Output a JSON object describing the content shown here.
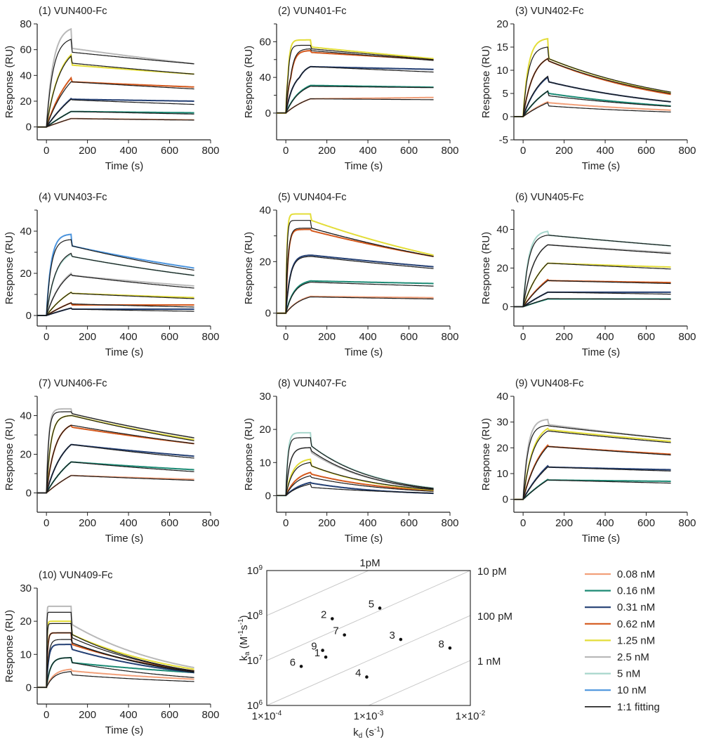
{
  "legend": {
    "items": [
      {
        "label": "0.08 nM",
        "color": "#f2a07a"
      },
      {
        "label": "0.16 nM",
        "color": "#1b8a74"
      },
      {
        "label": "0.31 nM",
        "color": "#233f73"
      },
      {
        "label": "0.62 nM",
        "color": "#d4581c"
      },
      {
        "label": "1.25 nM",
        "color": "#e3dd38"
      },
      {
        "label": "2.5 nM",
        "color": "#b9b9b9"
      },
      {
        "label": "5 nM",
        "color": "#a7d6cc"
      },
      {
        "label": "10 nM",
        "color": "#4b94dd"
      },
      {
        "label": "1:1 fitting",
        "color": "#1a1a1a"
      }
    ]
  },
  "chart_data": [
    {
      "type": "line",
      "title": "(1) VUN400-Fc",
      "xlabel": "Time (s)",
      "ylabel": "Response (RU)",
      "xlim": [
        -45,
        800
      ],
      "xticks": [
        0,
        200,
        400,
        600,
        800
      ],
      "ylim": [
        -10,
        80
      ],
      "yticks": [
        0,
        20,
        40,
        60,
        80
      ],
      "yminor": [],
      "series": [
        {
          "name": "0.08 nM",
          "r120": 6.5,
          "r125": 6.5,
          "r720": 5.5,
          "fit": {
            "r120": 6.5,
            "r125": 6.5,
            "r720": 5.3
          }
        },
        {
          "name": "0.16 nM",
          "r120": 12,
          "r125": 12,
          "r720": 11,
          "fit": {
            "r120": 12,
            "r125": 12,
            "r720": 10
          }
        },
        {
          "name": "0.31 nM",
          "r120": 22,
          "r125": 21.5,
          "r720": 20,
          "fit": {
            "r120": 21.5,
            "r125": 21,
            "r720": 17.5
          }
        },
        {
          "name": "0.62 nM",
          "r120": 38,
          "r125": 35,
          "r720": 31,
          "fit": {
            "r120": 35,
            "r125": 35,
            "r720": 29.5
          }
        },
        {
          "name": "1.25 nM",
          "r120": 56,
          "r125": 48,
          "r720": 41,
          "fit": {
            "r120": 55,
            "r125": 49.5,
            "r720": 41
          }
        },
        {
          "name": "2.5 nM",
          "r120": 76,
          "r125": 61,
          "r720": 49,
          "fit": {
            "r120": 68,
            "r125": 58,
            "r720": 49
          }
        }
      ]
    },
    {
      "type": "line",
      "title": "(2) VUN401-Fc",
      "xlabel": "Time (s)",
      "ylabel": "Response (RU)",
      "xlim": [
        -45,
        800
      ],
      "xticks": [
        0,
        200,
        400,
        600,
        800
      ],
      "ylim": [
        -30,
        70
      ],
      "yticks": [
        0,
        40,
        60
      ],
      "yminor": [
        20,
        50,
        70
      ],
      "series": [
        {
          "name": "0.08 nM",
          "r120": 16,
          "r125": 16,
          "r720": 17.5,
          "fit": {
            "r120": 16,
            "r125": 16,
            "r720": 15
          }
        },
        {
          "name": "0.16 nM",
          "r120": 31,
          "r125": 31,
          "r720": 29,
          "fit": {
            "r120": 30,
            "r125": 30,
            "r720": 28.5
          }
        },
        {
          "name": "0.31 nM",
          "r120": 46,
          "r125": 46,
          "r720": 44.5,
          "fit": {
            "r120": 46,
            "r125": 46,
            "r720": 43
          }
        },
        {
          "name": "0.62 nM",
          "r120": 55,
          "r125": 54,
          "r720": 50,
          "fit": {
            "r120": 56,
            "r125": 55,
            "r720": 49.5
          }
        },
        {
          "name": "1.25 nM",
          "r120": 61,
          "r125": 57,
          "r720": 50.5,
          "fit": {
            "r120": 58,
            "r125": 56,
            "r720": 50
          }
        }
      ]
    },
    {
      "type": "line",
      "title": "(3) VUN402-Fc",
      "xlabel": "Time (s)",
      "ylabel": "Response (RU)",
      "xlim": [
        -45,
        800
      ],
      "xticks": [
        0,
        200,
        400,
        600,
        800
      ],
      "ylim": [
        -5,
        20
      ],
      "yticks": [
        -5,
        0,
        5,
        10,
        15,
        20
      ],
      "yminor": [],
      "series": [
        {
          "name": "0.08 nM",
          "r120": 3.2,
          "r125": 3,
          "r720": 1.4,
          "fit": {
            "r120": 3,
            "r125": 2.3,
            "r720": 1
          }
        },
        {
          "name": "0.16 nM",
          "r120": 5.5,
          "r125": 5,
          "r720": 2.3,
          "fit": {
            "r120": 5.5,
            "r125": 4.5,
            "r720": 2.2
          }
        },
        {
          "name": "0.31 nM",
          "r120": 8.5,
          "r125": 7.5,
          "r720": 3.2,
          "fit": {
            "r120": 8.7,
            "r125": 7.5,
            "r720": 3.2
          }
        },
        {
          "name": "0.62 nM",
          "r120": 12.5,
          "r125": 12,
          "r720": 4.8,
          "fit": {
            "r120": 12.5,
            "r125": 12,
            "r720": 5
          }
        },
        {
          "name": "1.25 nM",
          "r120": 16.8,
          "r125": 12.5,
          "r720": 5.2,
          "fit": {
            "r120": 15,
            "r125": 12.5,
            "r720": 5.3
          }
        }
      ]
    },
    {
      "type": "line",
      "title": "(4) VUN403-Fc",
      "xlabel": "Time (s)",
      "ylabel": "Response (RU)",
      "xlim": [
        -45,
        800
      ],
      "xticks": [
        0,
        200,
        400,
        600,
        800
      ],
      "ylim": [
        -5,
        50
      ],
      "yticks": [
        0,
        20,
        40
      ],
      "yminor": [
        10,
        30,
        50
      ],
      "series": [
        {
          "name": "0.31 nM",
          "r120": 3.5,
          "r125": 3,
          "r720": 3,
          "fit": {
            "r120": 3.5,
            "r125": 3,
            "r720": 2
          }
        },
        {
          "name": "0.62 nM",
          "r120": 6,
          "r125": 5,
          "r720": 5,
          "fit": {
            "r120": 6,
            "r125": 5.5,
            "r720": 4
          }
        },
        {
          "name": "1.25 nM",
          "r120": 11,
          "r125": 10.5,
          "r720": 8.5,
          "fit": {
            "r120": 11,
            "r125": 10.5,
            "r720": 8
          }
        },
        {
          "name": "2.5 nM",
          "r120": 20,
          "r125": 19,
          "r720": 14,
          "fit": {
            "r120": 19.5,
            "r125": 19,
            "r720": 13
          }
        },
        {
          "name": "5 nM",
          "r120": 29,
          "r125": 28,
          "r720": 19,
          "fit": {
            "r120": 29.5,
            "r125": 28,
            "r720": 19
          }
        },
        {
          "name": "10 nM",
          "r120": 38.5,
          "r125": 33,
          "r720": 22.5,
          "fit": {
            "r120": 36,
            "r125": 33,
            "r720": 21.5
          }
        }
      ]
    },
    {
      "type": "line",
      "title": "(5) VUN404-Fc",
      "xlabel": "Time (s)",
      "ylabel": "Response (RU)",
      "xlim": [
        -45,
        800
      ],
      "xticks": [
        0,
        200,
        400,
        600,
        800
      ],
      "ylim": [
        -5,
        40
      ],
      "yticks": [
        0,
        20,
        40
      ],
      "yminor": [
        10,
        30
      ],
      "series": [
        {
          "name": "0.08 nM",
          "r120": 6.5,
          "r125": 6.5,
          "r720": 6,
          "fit": {
            "r120": 6.3,
            "r125": 6.3,
            "r720": 5.5
          }
        },
        {
          "name": "0.16 nM",
          "r120": 12.5,
          "r125": 12.5,
          "r720": 11.5,
          "fit": {
            "r120": 12,
            "r125": 12,
            "r720": 10.5
          }
        },
        {
          "name": "0.31 nM",
          "r120": 22.5,
          "r125": 22.5,
          "r720": 18,
          "fit": {
            "r120": 22,
            "r125": 22,
            "r720": 17.3
          }
        },
        {
          "name": "0.62 nM",
          "r120": 32.5,
          "r125": 32,
          "r720": 22,
          "fit": {
            "r120": 33,
            "r125": 33,
            "r720": 22
          }
        },
        {
          "name": "1.25 nM",
          "r120": 38.5,
          "r125": 36,
          "r720": 22.5,
          "fit": {
            "r120": 36,
            "r125": 33,
            "r720": 22
          }
        }
      ]
    },
    {
      "type": "line",
      "title": "(6) VUN405-Fc",
      "xlabel": "Time (s)",
      "ylabel": "Response (RU)",
      "xlim": [
        -45,
        800
      ],
      "xticks": [
        0,
        200,
        400,
        600,
        800
      ],
      "ylim": [
        -10,
        50
      ],
      "yticks": [
        0,
        20,
        40
      ],
      "yminor": [
        10,
        30,
        50
      ],
      "series": [
        {
          "name": "0.16 nM",
          "r120": 4,
          "r125": 4,
          "r720": 4,
          "fit": {
            "r120": 4.2,
            "r125": 4.2,
            "r720": 3.8
          }
        },
        {
          "name": "0.31 nM",
          "r120": 7.5,
          "r125": 7.5,
          "r720": 7.5,
          "fit": {
            "r120": 7.5,
            "r125": 7.5,
            "r720": 6.5
          }
        },
        {
          "name": "0.62 nM",
          "r120": 14,
          "r125": 13.5,
          "r720": 12.5,
          "fit": {
            "r120": 13.5,
            "r125": 13.5,
            "r720": 12
          }
        },
        {
          "name": "1.25 nM",
          "r120": 22.5,
          "r125": 22.5,
          "r720": 20.5,
          "fit": {
            "r120": 22.5,
            "r125": 22.5,
            "r720": 19.5
          }
        },
        {
          "name": "2.5 nM",
          "r120": 32,
          "r125": 32,
          "r720": 28,
          "fit": {
            "r120": 32,
            "r125": 32,
            "r720": 27.5
          }
        },
        {
          "name": "5 nM",
          "r120": 39,
          "r125": 37,
          "r720": 31.5,
          "fit": {
            "r120": 37,
            "r125": 37,
            "r720": 31.5
          }
        }
      ]
    },
    {
      "type": "line",
      "title": "(7) VUN406-Fc",
      "xlabel": "Time (s)",
      "ylabel": "Response (RU)",
      "xlim": [
        -45,
        800
      ],
      "xticks": [
        0,
        200,
        400,
        600,
        800
      ],
      "ylim": [
        -10,
        50
      ],
      "yticks": [
        0,
        20,
        40
      ],
      "yminor": [
        10,
        30,
        50
      ],
      "series": [
        {
          "name": "0.08 nM",
          "r120": 9,
          "r125": 9,
          "r720": 7,
          "fit": {
            "r120": 9,
            "r125": 9,
            "r720": 6.5
          }
        },
        {
          "name": "0.16 nM",
          "r120": 16,
          "r125": 16,
          "r720": 12,
          "fit": {
            "r120": 16,
            "r125": 16,
            "r720": 11
          }
        },
        {
          "name": "0.31 nM",
          "r120": 25,
          "r125": 25,
          "r720": 19,
          "fit": {
            "r120": 25,
            "r125": 25,
            "r720": 18
          }
        },
        {
          "name": "0.62 nM",
          "r120": 35,
          "r125": 34,
          "r720": 25.5,
          "fit": {
            "r120": 35,
            "r125": 35,
            "r720": 25.5
          }
        },
        {
          "name": "1.25 nM",
          "r120": 40,
          "r125": 40,
          "r720": 27.5,
          "fit": {
            "r120": 40,
            "r125": 40,
            "r720": 27
          }
        },
        {
          "name": "2.5 nM",
          "r120": 43.5,
          "r125": 41,
          "r720": 28.5,
          "fit": {
            "r120": 42,
            "r125": 41,
            "r720": 28.5
          }
        }
      ]
    },
    {
      "type": "line",
      "title": "(8) VUN407-Fc",
      "xlabel": "Time (s)",
      "ylabel": "Response (RU)",
      "xlim": [
        -45,
        800
      ],
      "xticks": [
        0,
        200,
        400,
        600,
        800
      ],
      "ylim": [
        -5,
        30
      ],
      "yticks": [
        0,
        10,
        20,
        30
      ],
      "yminor": [],
      "series": [
        {
          "name": "0.31 nM",
          "r120": 4,
          "r125": 3.8,
          "r720": 0.7,
          "fit": {
            "r120": 3.5,
            "r125": 2.5,
            "r720": 0.8
          }
        },
        {
          "name": "0.62 nM",
          "r120": 7,
          "r125": 6.5,
          "r720": 1.5,
          "fit": {
            "r120": 6,
            "r125": 5.5,
            "r720": 1.3
          }
        },
        {
          "name": "1.25 nM",
          "r120": 11,
          "r125": 9,
          "r720": 1.7,
          "fit": {
            "r120": 10,
            "r125": 9,
            "r720": 1.8
          }
        },
        {
          "name": "2.5 nM",
          "r120": 14.5,
          "r125": 13,
          "r720": 2,
          "fit": {
            "r120": 14.5,
            "r125": 13.5,
            "r720": 2
          }
        },
        {
          "name": "5 nM",
          "r120": 19,
          "r125": 15,
          "r720": 2.3,
          "fit": {
            "r120": 17.5,
            "r125": 15,
            "r720": 2.2
          }
        }
      ]
    },
    {
      "type": "line",
      "title": "(9) VUN408-Fc",
      "xlabel": "Time (s)",
      "ylabel": "Response (RU)",
      "xlim": [
        -45,
        800
      ],
      "xticks": [
        0,
        200,
        400,
        600,
        800
      ],
      "ylim": [
        -5,
        40
      ],
      "yticks": [
        0,
        10,
        20,
        30,
        40
      ],
      "yminor": [],
      "series": [
        {
          "name": "0.16 nM",
          "r120": 7.7,
          "r125": 7.5,
          "r720": 7,
          "fit": {
            "r120": 7.5,
            "r125": 7.5,
            "r720": 6.3
          }
        },
        {
          "name": "0.31 nM",
          "r120": 13,
          "r125": 12.5,
          "r720": 11.5,
          "fit": {
            "r120": 12.5,
            "r125": 12.5,
            "r720": 11
          }
        },
        {
          "name": "0.62 nM",
          "r120": 21,
          "r125": 20.5,
          "r720": 17.5,
          "fit": {
            "r120": 20.5,
            "r125": 20.5,
            "r720": 17.2
          }
        },
        {
          "name": "1.25 nM",
          "r120": 27.5,
          "r125": 27,
          "r720": 22.5,
          "fit": {
            "r120": 26.5,
            "r125": 26.5,
            "r720": 22
          }
        },
        {
          "name": "2.5 nM",
          "r120": 31,
          "r125": 29,
          "r720": 23.5,
          "fit": {
            "r120": 28.7,
            "r125": 28.5,
            "r720": 23.5
          }
        }
      ]
    },
    {
      "type": "line",
      "title": "(10) VUN409-Fc",
      "xlabel": "Time (s)",
      "ylabel": "Response (RU)",
      "xlim": [
        -45,
        800
      ],
      "xticks": [
        0,
        200,
        400,
        600,
        800
      ],
      "ylim": [
        -5,
        30
      ],
      "yticks": [
        0,
        10,
        20,
        30
      ],
      "yminor": [],
      "series": [
        {
          "name": "0.08 nM",
          "r120": 5.5,
          "r125": 5,
          "r720": 2.5,
          "fit": {
            "r120": 4.8,
            "r125": 3.8,
            "r720": 1.8
          }
        },
        {
          "name": "0.16 nM",
          "r120": 9,
          "r125": 7.5,
          "r720": 4.5,
          "fit": {
            "r120": 9,
            "r125": 7.5,
            "r720": 3
          }
        },
        {
          "name": "0.31 nM",
          "r120": 13,
          "r125": 11.5,
          "r720": 4.5,
          "fit": {
            "r120": 14.5,
            "r125": 13.5,
            "r720": 4.6
          }
        },
        {
          "name": "0.62 nM",
          "r120": 16.5,
          "r125": 13,
          "r720": 5,
          "fit": {
            "r120": 16.5,
            "r125": 13.5,
            "r720": 4.8
          }
        },
        {
          "name": "1.25 nM",
          "r120": 20,
          "r125": 16,
          "r720": 5.5,
          "fit": {
            "r120": 19.3,
            "r125": 15,
            "r720": 5
          }
        },
        {
          "name": "2.5 nM",
          "r120": 24.5,
          "r125": 19,
          "r720": 6,
          "fit": {
            "r120": 22.7,
            "r125": 16,
            "r720": 5
          }
        }
      ]
    },
    {
      "type": "scatter",
      "xscale": "log",
      "yscale": "log",
      "xlim": [
        0.0001,
        0.01
      ],
      "ylim": [
        1000000,
        1000000000
      ],
      "xlabel": {
        "main": "k",
        "sub": "d",
        "rest": " (s",
        "sup": "-1",
        "end": ")"
      },
      "ylabel": {
        "main": "k",
        "sub": "a",
        "rest": " (M",
        "sup": "-1",
        "mid": "s",
        "sup2": "-1",
        "end": ")"
      },
      "xticks": [
        {
          "value": 0.0001,
          "base": "1×10",
          "exp": "-4"
        },
        {
          "value": 0.001,
          "base": "1×10",
          "exp": "-3"
        },
        {
          "value": 0.01,
          "base": "1×10",
          "exp": "-2"
        }
      ],
      "yticks": [
        {
          "value": 1000000,
          "base": "10",
          "exp": "6"
        },
        {
          "value": 10000000,
          "base": "10",
          "exp": "7"
        },
        {
          "value": 100000000,
          "base": "10",
          "exp": "8"
        },
        {
          "value": 1000000000,
          "base": "10",
          "exp": "9"
        }
      ],
      "isolines": [
        {
          "KD": 1e-12,
          "label": "1pM"
        },
        {
          "KD": 1e-11,
          "label": "10 pM"
        },
        {
          "KD": 1e-10,
          "label": "100 pM"
        },
        {
          "KD": 1e-09,
          "label": "1 nM"
        }
      ],
      "points": [
        {
          "label": "1",
          "kd": 0.00038,
          "ka": 11900000
        },
        {
          "label": "2",
          "kd": 0.00044,
          "ka": 85000000
        },
        {
          "label": "3",
          "kd": 0.00207,
          "ka": 29400000
        },
        {
          "label": "4",
          "kd": 0.00096,
          "ka": 4300000
        },
        {
          "label": "5",
          "kd": 0.00129,
          "ka": 146000000
        },
        {
          "label": "6",
          "kd": 0.000218,
          "ka": 7400000
        },
        {
          "label": "7",
          "kd": 0.00058,
          "ka": 37000000
        },
        {
          "label": "8",
          "kd": 0.0063,
          "ka": 18900000
        },
        {
          "label": "9",
          "kd": 0.000354,
          "ka": 16800000
        }
      ]
    }
  ]
}
